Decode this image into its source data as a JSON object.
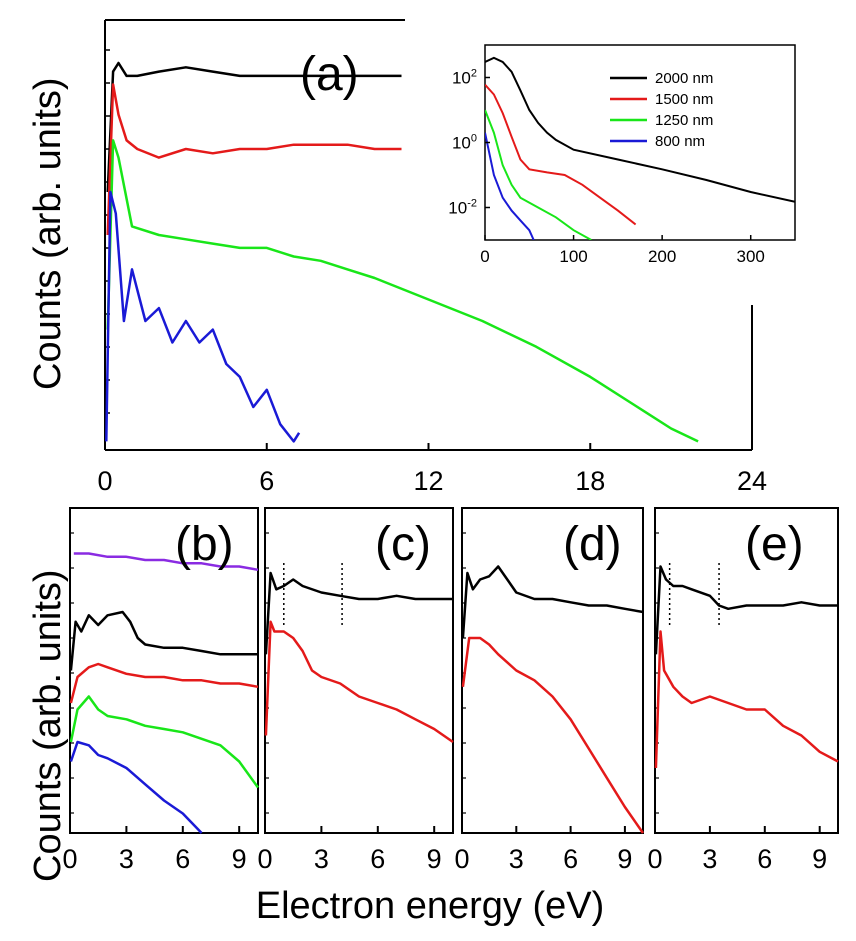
{
  "figure": {
    "ylabel_top": "Counts (arb. units)",
    "ylabel_bottom": "Counts (arb. units)",
    "xlabel": "Electron energy (eV)"
  },
  "colors": {
    "2000nm": "#000000",
    "1500nm": "#e41a1a",
    "1250nm": "#19e619",
    "800nm": "#1a1ad6",
    "purple": "#8a2be2"
  },
  "chart_data": [
    {
      "panel": "(a)",
      "type": "line",
      "x_ticks": [
        "0",
        "6",
        "12",
        "18",
        "24"
      ],
      "xlim": [
        0,
        24
      ],
      "series": [
        {
          "color_key": "2000nm",
          "x": [
            0.1,
            0.3,
            0.5,
            0.8,
            1.2,
            2,
            3,
            4,
            5,
            6,
            7,
            8,
            9,
            10,
            11
          ],
          "y": [
            0.6,
            0.88,
            0.9,
            0.87,
            0.87,
            0.88,
            0.89,
            0.88,
            0.87,
            0.87,
            0.87,
            0.87,
            0.87,
            0.87,
            0.87
          ]
        },
        {
          "color_key": "1500nm",
          "x": [
            0.1,
            0.3,
            0.5,
            0.8,
            1.2,
            2,
            3,
            4,
            5,
            6,
            7,
            8,
            9,
            10,
            11
          ],
          "y": [
            0.5,
            0.85,
            0.78,
            0.72,
            0.7,
            0.68,
            0.7,
            0.69,
            0.7,
            0.7,
            0.71,
            0.71,
            0.71,
            0.7,
            0.7
          ]
        },
        {
          "color_key": "1250nm",
          "x": [
            0.1,
            0.3,
            0.5,
            1,
            2,
            3,
            4,
            5,
            6,
            7,
            8,
            9,
            10,
            12,
            14,
            16,
            18,
            20,
            21,
            22
          ],
          "y": [
            0.28,
            0.72,
            0.68,
            0.52,
            0.5,
            0.49,
            0.48,
            0.47,
            0.47,
            0.45,
            0.44,
            0.42,
            0.4,
            0.35,
            0.3,
            0.24,
            0.17,
            0.09,
            0.05,
            0.02
          ]
        },
        {
          "color_key": "800nm",
          "x": [
            0.05,
            0.2,
            0.4,
            0.7,
            1.0,
            1.5,
            2,
            2.5,
            3,
            3.5,
            4,
            4.5,
            5,
            5.5,
            6,
            6.5,
            7,
            7.2
          ],
          "y": [
            0.02,
            0.6,
            0.55,
            0.3,
            0.42,
            0.3,
            0.33,
            0.25,
            0.3,
            0.25,
            0.28,
            0.2,
            0.17,
            0.1,
            0.14,
            0.06,
            0.02,
            0.04
          ]
        }
      ]
    },
    {
      "panel": "inset",
      "type": "line",
      "yscale": "log",
      "x_ticks": [
        "0",
        "100",
        "200",
        "300"
      ],
      "y_ticks": [
        "10-2",
        "100",
        "102"
      ],
      "xlim": [
        0,
        350
      ],
      "ylim": [
        0.001,
        1000
      ],
      "legend": [
        {
          "label": "2000 nm",
          "color_key": "2000nm"
        },
        {
          "label": "1500 nm",
          "color_key": "1500nm"
        },
        {
          "label": "1250 nm",
          "color_key": "1250nm"
        },
        {
          "label": "800 nm",
          "color_key": "800nm"
        }
      ],
      "series": [
        {
          "color_key": "2000nm",
          "x": [
            0,
            10,
            20,
            30,
            40,
            50,
            60,
            70,
            80,
            100,
            150,
            200,
            250,
            300,
            350
          ],
          "y": [
            300,
            400,
            300,
            150,
            40,
            10,
            4,
            2,
            1.2,
            0.6,
            0.3,
            0.15,
            0.07,
            0.03,
            0.015
          ]
        },
        {
          "color_key": "1500nm",
          "x": [
            0,
            10,
            20,
            30,
            40,
            50,
            70,
            90,
            110,
            130,
            150,
            170
          ],
          "y": [
            60,
            30,
            8,
            1.5,
            0.3,
            0.15,
            0.12,
            0.1,
            0.05,
            0.02,
            0.008,
            0.003
          ]
        },
        {
          "color_key": "1250nm",
          "x": [
            0,
            10,
            20,
            30,
            40,
            60,
            80,
            100,
            120
          ],
          "y": [
            10,
            2,
            0.2,
            0.05,
            0.02,
            0.01,
            0.005,
            0.002,
            0.001
          ]
        },
        {
          "color_key": "800nm",
          "x": [
            0,
            10,
            20,
            30,
            40,
            50,
            55
          ],
          "y": [
            2,
            0.1,
            0.02,
            0.008,
            0.004,
            0.002,
            0.001
          ]
        }
      ]
    },
    {
      "panel": "(b)",
      "type": "line",
      "x_ticks": [
        "0",
        "3",
        "6",
        "9"
      ],
      "xlim": [
        0,
        10
      ],
      "series": [
        {
          "color_key": "purple",
          "x": [
            0.2,
            1,
            2,
            3,
            4,
            5,
            6,
            7,
            8,
            9,
            10
          ],
          "y": [
            0.86,
            0.86,
            0.85,
            0.85,
            0.84,
            0.84,
            0.83,
            0.83,
            0.82,
            0.82,
            0.81
          ]
        },
        {
          "color_key": "2000nm",
          "x": [
            0.05,
            0.3,
            0.6,
            1,
            1.5,
            2,
            2.8,
            3.2,
            3.6,
            4,
            5,
            6,
            7,
            8,
            9,
            10
          ],
          "y": [
            0.5,
            0.65,
            0.62,
            0.67,
            0.64,
            0.67,
            0.68,
            0.65,
            0.6,
            0.58,
            0.57,
            0.57,
            0.56,
            0.55,
            0.55,
            0.55
          ]
        },
        {
          "color_key": "1500nm",
          "x": [
            0.05,
            0.4,
            1,
            1.5,
            2,
            3,
            4,
            5,
            6,
            7,
            8,
            9,
            10
          ],
          "y": [
            0.4,
            0.48,
            0.51,
            0.52,
            0.51,
            0.49,
            0.48,
            0.48,
            0.47,
            0.47,
            0.46,
            0.46,
            0.45
          ]
        },
        {
          "color_key": "1250nm",
          "x": [
            0.05,
            0.4,
            1,
            1.5,
            2,
            3,
            4,
            5,
            6,
            7,
            8,
            9,
            10
          ],
          "y": [
            0.28,
            0.38,
            0.42,
            0.38,
            0.36,
            0.35,
            0.33,
            0.32,
            0.31,
            0.29,
            0.27,
            0.22,
            0.14
          ]
        },
        {
          "color_key": "800nm",
          "x": [
            0.05,
            0.4,
            1,
            1.5,
            2,
            3,
            4,
            5,
            6,
            6.5,
            7
          ],
          "y": [
            0.22,
            0.28,
            0.27,
            0.24,
            0.23,
            0.2,
            0.15,
            0.1,
            0.06,
            0.03,
            0.0
          ]
        }
      ]
    },
    {
      "panel": "(c)",
      "type": "line",
      "x_ticks": [
        "0",
        "3",
        "6",
        "9"
      ],
      "xlim": [
        0,
        10
      ],
      "dotted_x": [
        1.0,
        4.1
      ],
      "series": [
        {
          "color_key": "2000nm",
          "x": [
            0.05,
            0.3,
            0.6,
            1,
            1.5,
            2,
            3,
            4,
            5,
            6,
            7,
            8,
            9,
            10
          ],
          "y": [
            0.55,
            0.8,
            0.75,
            0.76,
            0.78,
            0.76,
            0.74,
            0.73,
            0.72,
            0.72,
            0.73,
            0.72,
            0.72,
            0.72
          ]
        },
        {
          "color_key": "1500nm",
          "x": [
            0.05,
            0.3,
            0.5,
            1,
            1.5,
            2,
            2.5,
            3,
            4,
            5,
            6,
            7,
            8,
            9,
            10
          ],
          "y": [
            0.3,
            0.65,
            0.62,
            0.62,
            0.6,
            0.56,
            0.5,
            0.48,
            0.46,
            0.42,
            0.4,
            0.38,
            0.35,
            0.32,
            0.28
          ]
        }
      ]
    },
    {
      "panel": "(d)",
      "type": "line",
      "x_ticks": [
        "0",
        "3",
        "6",
        "9"
      ],
      "xlim": [
        0,
        10
      ],
      "series": [
        {
          "color_key": "2000nm",
          "x": [
            0.05,
            0.3,
            0.6,
            1,
            1.5,
            2,
            2.5,
            3,
            4,
            5,
            6,
            7,
            8,
            9,
            10
          ],
          "y": [
            0.6,
            0.8,
            0.75,
            0.78,
            0.79,
            0.82,
            0.78,
            0.74,
            0.72,
            0.72,
            0.71,
            0.7,
            0.7,
            0.69,
            0.68
          ]
        },
        {
          "color_key": "1500nm",
          "x": [
            0.05,
            0.4,
            1,
            1.5,
            2,
            3,
            4,
            5,
            6,
            7,
            8,
            9,
            10
          ],
          "y": [
            0.45,
            0.6,
            0.6,
            0.58,
            0.55,
            0.5,
            0.47,
            0.42,
            0.35,
            0.26,
            0.17,
            0.08,
            0.0
          ]
        }
      ]
    },
    {
      "panel": "(e)",
      "type": "line",
      "x_ticks": [
        "0",
        "3",
        "6",
        "9"
      ],
      "xlim": [
        0,
        10
      ],
      "dotted_x": [
        0.8,
        3.5
      ],
      "series": [
        {
          "color_key": "2000nm",
          "x": [
            0.05,
            0.3,
            0.6,
            1,
            1.5,
            2,
            3,
            3.5,
            4,
            5,
            6,
            7,
            8,
            9,
            10
          ],
          "y": [
            0.55,
            0.82,
            0.78,
            0.76,
            0.76,
            0.75,
            0.73,
            0.7,
            0.69,
            0.7,
            0.7,
            0.7,
            0.71,
            0.7,
            0.7
          ]
        },
        {
          "color_key": "1500nm",
          "x": [
            0.05,
            0.3,
            0.5,
            1,
            1.5,
            2,
            3,
            4,
            5,
            6,
            7,
            8,
            9,
            10
          ],
          "y": [
            0.2,
            0.62,
            0.5,
            0.45,
            0.42,
            0.4,
            0.42,
            0.4,
            0.38,
            0.38,
            0.33,
            0.3,
            0.25,
            0.22
          ]
        }
      ]
    }
  ]
}
